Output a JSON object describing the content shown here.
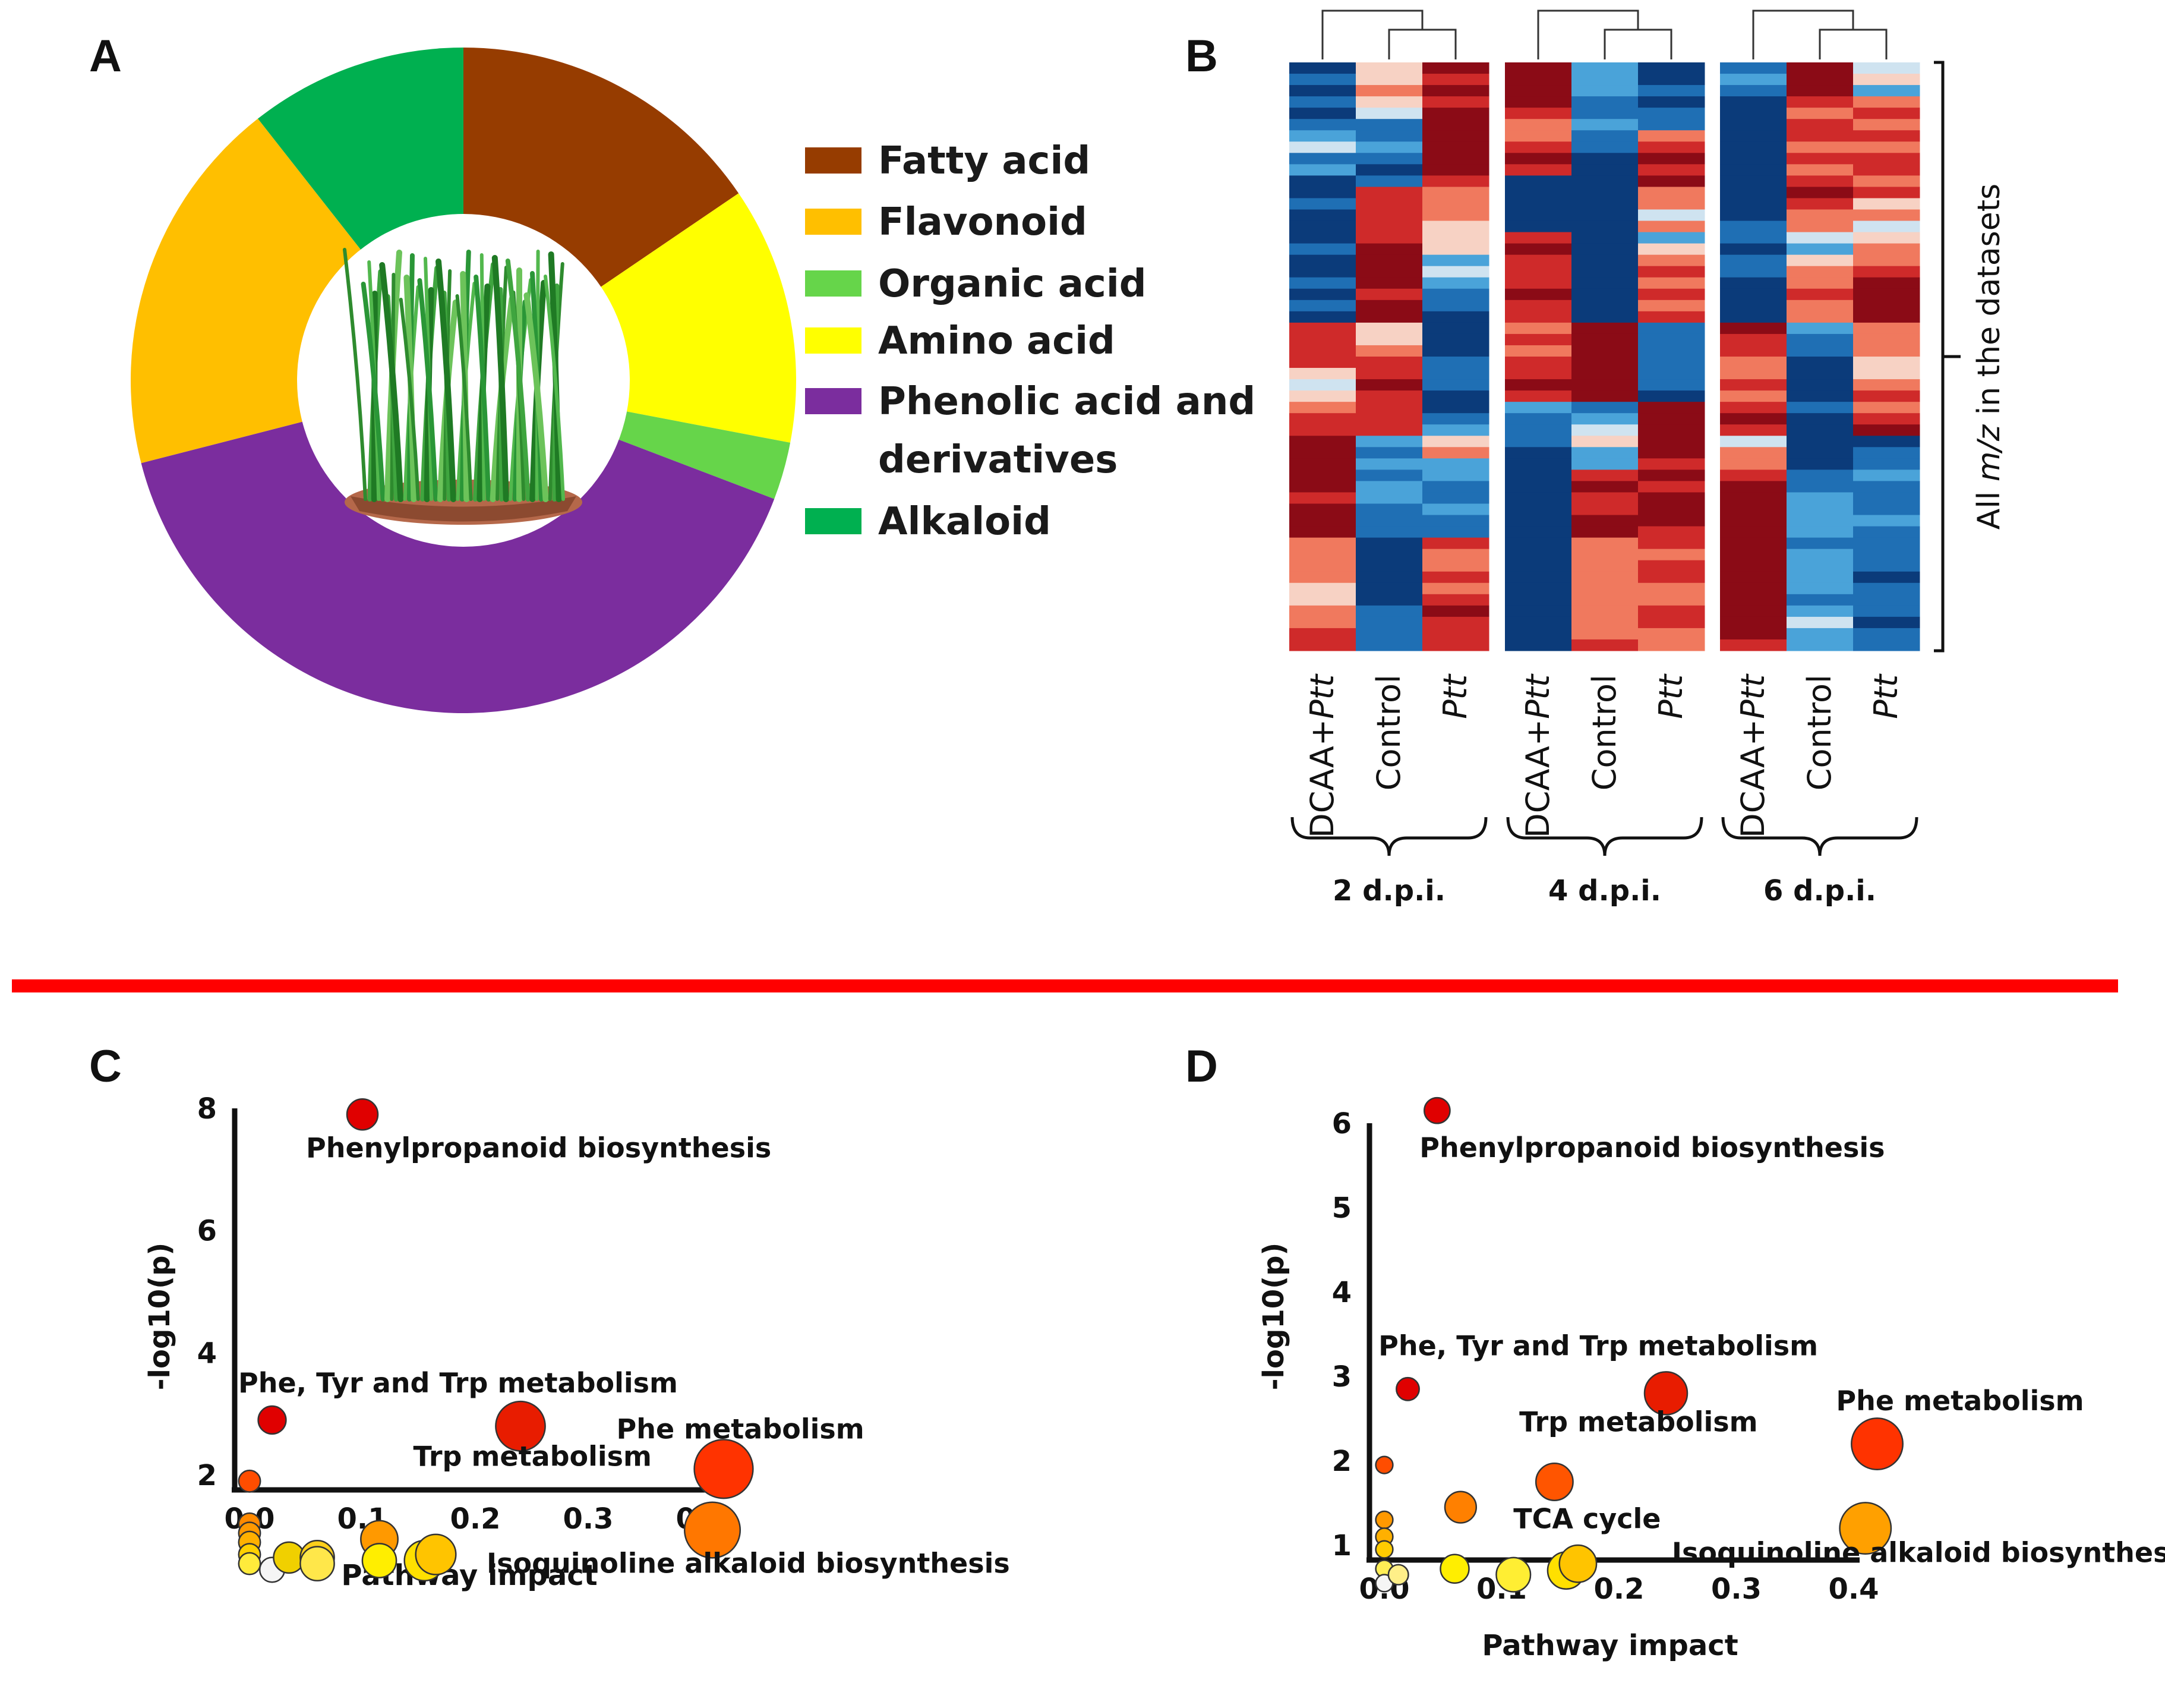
{
  "panels": {
    "a": "A",
    "b": "B",
    "c": "C",
    "d": "D"
  },
  "colors": {
    "divider": "#ff0000",
    "photo_bg": "#ffffff"
  },
  "chart_data": [
    {
      "id": "A",
      "type": "pie",
      "title": "",
      "style": "donut",
      "center_icon": "wheat-seedlings-icon",
      "slices": [
        {
          "label": "Fatty acid",
          "value": 15.5,
          "color": "#963c00"
        },
        {
          "label": "Amino acid",
          "value": 12.5,
          "color": "#ffff00"
        },
        {
          "label": "Organic acid",
          "value": 2.8,
          "color": "#66d54a"
        },
        {
          "label": "Phenolic acid and derivatives",
          "value": 40.2,
          "color": "#7b2d9e"
        },
        {
          "label": "Flavonoid",
          "value": 18.4,
          "color": "#ffbf00"
        },
        {
          "label": "Alkaloid",
          "value": 10.6,
          "color": "#00b050"
        }
      ],
      "legend": [
        {
          "label": "Fatty acid",
          "color": "#963c00"
        },
        {
          "label": "Flavonoid",
          "color": "#ffbf00"
        },
        {
          "label": "Organic acid",
          "color": "#66d54a"
        },
        {
          "label": "Amino acid",
          "color": "#ffff00"
        },
        {
          "label": "Phenolic acid and",
          "label2": "derivatives",
          "color": "#7b2d9e"
        },
        {
          "label": "Alkaloid",
          "color": "#00b050"
        }
      ]
    },
    {
      "id": "B",
      "type": "heatmap",
      "row_label_prefix": "All ",
      "row_label_italic": "m/z",
      "row_label_suffix": " in the datasets",
      "groups": [
        {
          "label": "2 d.p.i.",
          "columns": [
            {
              "prefix": "DCAA+",
              "italic": "Ptt"
            },
            {
              "prefix": "Control",
              "italic": ""
            },
            {
              "prefix": "",
              "italic": "Ptt"
            }
          ]
        },
        {
          "label": "4 d.p.i.",
          "columns": [
            {
              "prefix": "DCAA+",
              "italic": "Ptt"
            },
            {
              "prefix": "Control",
              "italic": ""
            },
            {
              "prefix": "",
              "italic": "Ptt"
            }
          ]
        },
        {
          "label": "6 d.p.i.",
          "columns": [
            {
              "prefix": "DCAA+",
              "italic": "Ptt"
            },
            {
              "prefix": "Control",
              "italic": ""
            },
            {
              "prefix": "",
              "italic": "Ptt"
            }
          ]
        }
      ],
      "color_scale": [
        "#0b3b7a",
        "#1f6fb4",
        "#4aa3d9",
        "#cfe3f0",
        "#f7d2c4",
        "#f0795e",
        "#cf2a2a",
        "#8b0b16"
      ],
      "value_range": [
        -1,
        1
      ],
      "blocks": [
        [
          [
            [
              -1.0,
              -0.8,
              -0.9,
              -0.7,
              -0.9,
              -0.6,
              -0.4,
              -0.2,
              -0.7,
              -0.3,
              -0.9,
              -1.0,
              -0.8,
              -0.95,
              -1.0,
              -0.9,
              -0.85,
              -0.9,
              -1.0,
              -0.8,
              -0.9,
              -0.85,
              -0.9,
              0.6,
              0.7,
              0.8,
              0.6,
              0.1,
              -0.2,
              0.0,
              0.4,
              0.8,
              0.6,
              0.9,
              0.9,
              0.95,
              1.0,
              0.9,
              0.85,
              0.9,
              1.0,
              0.95,
              0.5,
              0.4,
              0.3,
              0.5,
              0.0,
              0.2,
              0.5,
              0.4,
              0.6,
              0.7
            ],
            [
              0.2,
              0.1,
              0.3,
              0.1,
              -0.2,
              -0.6,
              -0.7,
              -0.5,
              -0.6,
              -0.9,
              -0.8,
              0.7,
              0.6,
              0.8,
              0.7,
              0.6,
              0.9,
              0.95,
              0.9,
              1.0,
              0.85,
              0.9,
              0.95,
              0.2,
              0.1,
              0.3,
              0.7,
              0.8,
              0.9,
              0.7,
              0.8,
              0.8,
              0.6,
              -0.4,
              -0.6,
              -0.5,
              -0.8,
              -0.4,
              -0.5,
              -0.7,
              -0.6,
              -0.8,
              -1.0,
              -1.0,
              -0.95,
              -1.0,
              -0.9,
              -1.0,
              -0.8,
              -0.6,
              -0.7,
              -0.8
            ],
            [
              0.9,
              0.8,
              0.95,
              0.7,
              0.9,
              1.0,
              0.9,
              0.95,
              1.0,
              0.9,
              0.8,
              0.3,
              0.5,
              0.4,
              0.2,
              0.1,
              0.0,
              -0.3,
              -0.2,
              -0.5,
              -0.7,
              -0.8,
              -0.9,
              -1.0,
              -0.9,
              -1.0,
              -0.8,
              -0.6,
              -0.8,
              -0.9,
              -0.95,
              -0.7,
              -0.5,
              0.1,
              0.3,
              -0.3,
              -0.5,
              -0.6,
              -0.7,
              -0.5,
              -0.6,
              -0.8,
              0.6,
              0.5,
              0.4,
              0.7,
              0.5,
              0.6,
              0.9,
              0.8,
              0.7,
              0.8
            ]
          ],
          [
            [
              1.0,
              0.9,
              1.0,
              0.95,
              0.8,
              0.3,
              0.5,
              0.8,
              0.9,
              0.7,
              -0.9,
              -1.0,
              -0.9,
              -0.95,
              -1.0,
              0.8,
              0.9,
              0.7,
              0.6,
              0.85,
              0.9,
              0.8,
              0.6,
              0.4,
              0.6,
              0.5,
              0.7,
              0.8,
              0.9,
              0.85,
              -0.5,
              -0.7,
              -0.6,
              -0.8,
              -0.9,
              -0.95,
              -1.0,
              -0.9,
              -0.95,
              -1.0,
              -1.0,
              -0.9,
              -1.0,
              -0.95,
              -1.0,
              -0.9,
              -1.0,
              -0.95,
              -1.0,
              -0.9,
              -1.0,
              -0.95
            ],
            [
              -0.4,
              -0.5,
              -0.3,
              -0.6,
              -0.7,
              -0.5,
              -0.6,
              -0.8,
              -0.9,
              -1.0,
              -0.9,
              -1.0,
              -0.95,
              -1.0,
              -0.9,
              -1.0,
              -0.95,
              -1.0,
              -0.9,
              -0.95,
              -1.0,
              -0.9,
              -1.0,
              0.95,
              1.0,
              0.9,
              1.0,
              0.95,
              0.9,
              1.0,
              -0.6,
              -0.4,
              -0.2,
              0.1,
              -0.3,
              -0.5,
              0.8,
              0.9,
              0.8,
              0.7,
              0.9,
              0.95,
              0.3,
              0.4,
              0.5,
              0.3,
              0.4,
              0.5,
              0.4,
              0.3,
              0.5,
              0.6
            ],
            [
              -0.9,
              -1.0,
              -0.8,
              -0.9,
              -0.7,
              -0.8,
              0.5,
              0.7,
              0.9,
              0.8,
              1.0,
              0.3,
              0.5,
              -0.2,
              0.4,
              -0.3,
              0.2,
              0.5,
              0.6,
              0.4,
              0.7,
              0.5,
              0.6,
              -0.7,
              -0.8,
              -0.6,
              -0.7,
              -0.8,
              -0.6,
              -0.9,
              0.9,
              1.0,
              0.95,
              0.9,
              1.0,
              0.85,
              0.9,
              0.8,
              0.95,
              1.0,
              0.9,
              0.85,
              0.6,
              0.5,
              0.7,
              0.6,
              0.4,
              0.5,
              0.7,
              0.6,
              0.5,
              0.4
            ]
          ],
          [
            [
              -0.7,
              -0.3,
              -0.6,
              -0.9,
              -1.0,
              -0.95,
              -1.0,
              -0.9,
              -1.0,
              -0.95,
              -0.9,
              -1.0,
              -0.95,
              -0.9,
              -0.7,
              -0.8,
              -0.9,
              -0.6,
              -0.7,
              -0.95,
              -1.0,
              -0.9,
              -0.95,
              0.9,
              0.8,
              0.7,
              0.5,
              0.4,
              0.6,
              0.3,
              0.8,
              0.9,
              0.6,
              -0.2,
              0.3,
              0.5,
              0.6,
              0.9,
              1.0,
              0.95,
              1.0,
              0.9,
              0.95,
              1.0,
              0.9,
              1.0,
              0.95,
              0.9,
              1.0,
              0.95,
              0.9,
              0.8
            ],
            [
              0.9,
              1.0,
              0.95,
              0.8,
              0.5,
              0.6,
              0.7,
              0.5,
              0.6,
              0.4,
              0.8,
              0.9,
              0.6,
              0.5,
              0.3,
              -0.2,
              -0.3,
              0.2,
              0.4,
              0.5,
              0.6,
              0.3,
              0.5,
              -0.5,
              -0.7,
              -0.8,
              -0.9,
              -1.0,
              -0.9,
              -0.95,
              -0.8,
              -0.9,
              -1.0,
              -0.95,
              -1.0,
              -0.9,
              -0.6,
              -0.7,
              -0.5,
              -0.4,
              -0.3,
              -0.5,
              -0.6,
              -0.5,
              -0.4,
              -0.3,
              -0.5,
              -0.6,
              -0.4,
              -0.2,
              -0.3,
              -0.5
            ],
            [
              -0.2,
              0.2,
              -0.4,
              0.5,
              0.6,
              0.4,
              0.7,
              0.5,
              0.6,
              0.7,
              0.5,
              0.6,
              0.2,
              0.3,
              -0.2,
              0.1,
              0.3,
              0.5,
              0.6,
              0.9,
              1.0,
              0.95,
              0.9,
              0.3,
              0.5,
              0.4,
              0.2,
              0.1,
              0.4,
              0.6,
              0.5,
              0.8,
              0.9,
              -0.9,
              -0.7,
              -0.6,
              -0.5,
              -0.7,
              -0.8,
              -0.6,
              -0.5,
              -0.7,
              -0.8,
              -0.6,
              -0.7,
              -0.9,
              -0.8,
              -0.6,
              -0.7,
              -0.9,
              -0.8,
              -0.7
            ]
          ]
        ]
      ]
    },
    {
      "id": "C",
      "type": "scatter",
      "xlabel": "Pathway impact",
      "ylabel": "-log10(p)",
      "xlim": [
        0.0,
        0.42
      ],
      "ylim": [
        0.6,
        8.0
      ],
      "xticks": [
        "0.0",
        "0.1",
        "0.2",
        "0.3",
        "0.4"
      ],
      "xtick_values": [
        0.0,
        0.1,
        0.2,
        0.3,
        0.4
      ],
      "yticks": [
        "2",
        "4",
        "6",
        "8"
      ],
      "ytick_values": [
        2,
        4,
        6,
        8
      ],
      "points": [
        {
          "x": 0.1,
          "y": 7.9,
          "r": 1.0,
          "color": "#e00000"
        },
        {
          "x": 0.02,
          "y": 2.9,
          "r": 0.9,
          "color": "#e00000"
        },
        {
          "x": 0.24,
          "y": 2.8,
          "r": 1.6,
          "color": "#e81c00"
        },
        {
          "x": 0.42,
          "y": 2.1,
          "r": 1.9,
          "color": "#ff3300"
        },
        {
          "x": 0.41,
          "y": 1.1,
          "r": 1.8,
          "color": "#ff7700"
        },
        {
          "x": 0.0,
          "y": 1.9,
          "r": 0.7,
          "color": "#ff4d00"
        },
        {
          "x": 0.0,
          "y": 1.2,
          "r": 0.7,
          "color": "#ff8a00"
        },
        {
          "x": 0.0,
          "y": 1.05,
          "r": 0.7,
          "color": "#ff9900"
        },
        {
          "x": 0.0,
          "y": 0.9,
          "r": 0.7,
          "color": "#ffb000"
        },
        {
          "x": 0.0,
          "y": 0.7,
          "r": 0.7,
          "color": "#ffd000"
        },
        {
          "x": 0.0,
          "y": 0.55,
          "r": 0.7,
          "color": "#ffeb3b"
        },
        {
          "x": 0.02,
          "y": 0.45,
          "r": 0.8,
          "color": "#f5f5f5"
        },
        {
          "x": 0.035,
          "y": 0.65,
          "r": 1.0,
          "color": "#f0d000"
        },
        {
          "x": 0.06,
          "y": 0.65,
          "r": 1.1,
          "color": "#ffcf1a"
        },
        {
          "x": 0.06,
          "y": 0.55,
          "r": 1.1,
          "color": "#ffe74a"
        },
        {
          "x": 0.115,
          "y": 0.95,
          "r": 1.2,
          "color": "#ff9900"
        },
        {
          "x": 0.115,
          "y": 0.6,
          "r": 1.1,
          "color": "#ffee00"
        },
        {
          "x": 0.155,
          "y": 0.6,
          "r": 1.3,
          "color": "#ffe000"
        },
        {
          "x": 0.165,
          "y": 0.7,
          "r": 1.3,
          "color": "#ffc400"
        }
      ],
      "annotations": [
        {
          "text": "Phenylpropanoid biosynthesis",
          "x": 0.05,
          "y": 7.2
        },
        {
          "text": "Phe, Tyr and Trp metabolism",
          "x": -0.01,
          "y": 3.35
        },
        {
          "text": "Trp metabolism",
          "x": 0.145,
          "y": 2.15
        },
        {
          "text": "Phe metabolism",
          "x": 0.325,
          "y": 2.6
        },
        {
          "text": "Isoquinoline alkaloid biosynthesis",
          "x": 0.21,
          "y": 0.4
        }
      ]
    },
    {
      "id": "D",
      "type": "scatter",
      "xlabel": "Pathway impact",
      "ylabel": "-log10(p)",
      "xlim": [
        0.0,
        0.42
      ],
      "ylim": [
        0.6,
        6.0
      ],
      "xticks": [
        "0.0",
        "0.1",
        "0.2",
        "0.3",
        "0.4"
      ],
      "xtick_values": [
        0.0,
        0.1,
        0.2,
        0.3,
        0.4
      ],
      "yticks": [
        "1",
        "2",
        "3",
        "4",
        "5",
        "6"
      ],
      "ytick_values": [
        1,
        2,
        3,
        4,
        5,
        6
      ],
      "points": [
        {
          "x": 0.045,
          "y": 6.15,
          "r": 0.9,
          "color": "#e00000"
        },
        {
          "x": 0.02,
          "y": 2.85,
          "r": 0.8,
          "color": "#e00000"
        },
        {
          "x": 0.24,
          "y": 2.8,
          "r": 1.5,
          "color": "#e81c00"
        },
        {
          "x": 0.42,
          "y": 2.2,
          "r": 1.8,
          "color": "#ff3300"
        },
        {
          "x": 0.145,
          "y": 1.75,
          "r": 1.3,
          "color": "#ff5500"
        },
        {
          "x": 0.065,
          "y": 1.45,
          "r": 1.1,
          "color": "#ff8000"
        },
        {
          "x": 0.41,
          "y": 1.2,
          "r": 1.8,
          "color": "#ffa000"
        },
        {
          "x": 0.0,
          "y": 1.95,
          "r": 0.6,
          "color": "#ff4d00"
        },
        {
          "x": 0.0,
          "y": 1.3,
          "r": 0.6,
          "color": "#ff9900"
        },
        {
          "x": 0.0,
          "y": 1.1,
          "r": 0.6,
          "color": "#ffb000"
        },
        {
          "x": 0.0,
          "y": 0.95,
          "r": 0.6,
          "color": "#ffcc00"
        },
        {
          "x": 0.0,
          "y": 0.72,
          "r": 0.6,
          "color": "#ffee55"
        },
        {
          "x": 0.0,
          "y": 0.55,
          "r": 0.6,
          "color": "#f5f5f5"
        },
        {
          "x": 0.012,
          "y": 0.65,
          "r": 0.7,
          "color": "#ffef88"
        },
        {
          "x": 0.06,
          "y": 0.72,
          "r": 1.0,
          "color": "#ffee00"
        },
        {
          "x": 0.11,
          "y": 0.65,
          "r": 1.2,
          "color": "#ffee33"
        },
        {
          "x": 0.155,
          "y": 0.7,
          "r": 1.3,
          "color": "#ffe000"
        },
        {
          "x": 0.165,
          "y": 0.78,
          "r": 1.3,
          "color": "#ffc400"
        }
      ],
      "annotations": [
        {
          "text": "Phenylpropanoid biosynthesis",
          "x": 0.03,
          "y": 5.6
        },
        {
          "text": "Phe, Tyr and Trp metabolism",
          "x": -0.005,
          "y": 3.25
        },
        {
          "text": "Trp metabolism",
          "x": 0.115,
          "y": 2.35
        },
        {
          "text": "Phe metabolism",
          "x": 0.385,
          "y": 2.6
        },
        {
          "text": "TCA cycle",
          "x": 0.11,
          "y": 1.2
        },
        {
          "text": "Isoquinoline alkaloid biosynthesis",
          "x": 0.245,
          "y": 0.8
        }
      ]
    }
  ]
}
